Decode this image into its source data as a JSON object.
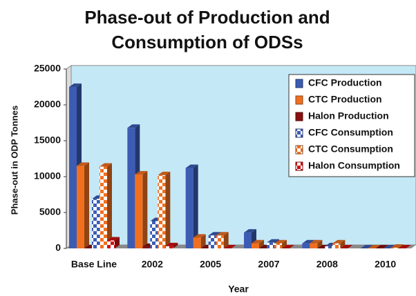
{
  "chart_data": {
    "type": "bar3d",
    "title": [
      "Phase-out of Production and",
      "Consumption of ODSs"
    ],
    "x_label": "Year",
    "y_label": "Phase-out in ODP Tonnes",
    "categories": [
      "Base Line",
      "2002",
      "2005",
      "2007",
      "2008",
      "2010"
    ],
    "ylim": [
      0,
      25000
    ],
    "yticks": [
      0,
      5000,
      10000,
      15000,
      20000,
      25000
    ],
    "legend": "top-right",
    "series": [
      {
        "name": "CFC Production",
        "color": "#3c5cb4",
        "fill_style": "solid",
        "values": [
          22500,
          16800,
          11200,
          2200,
          700,
          0
        ]
      },
      {
        "name": "CTC Production",
        "color": "#f07020",
        "fill_style": "solid",
        "values": [
          11500,
          10300,
          1500,
          700,
          700,
          0
        ]
      },
      {
        "name": "Halon Production",
        "color": "#8b1010",
        "fill_style": "solid",
        "values": [
          0,
          200,
          0,
          0,
          0,
          0
        ]
      },
      {
        "name": "CFC Consumption",
        "color": "#3c5cb4",
        "fill_style": "checkered",
        "values": [
          6900,
          3800,
          1800,
          800,
          300,
          0
        ]
      },
      {
        "name": "CTC Consumption",
        "color": "#f07020",
        "fill_style": "checkered",
        "values": [
          11400,
          10200,
          1800,
          700,
          700,
          100
        ]
      },
      {
        "name": "Halon Consumption",
        "color": "#d01010",
        "fill_style": "checkered",
        "values": [
          1100,
          300,
          0,
          0,
          0,
          0
        ]
      }
    ]
  }
}
